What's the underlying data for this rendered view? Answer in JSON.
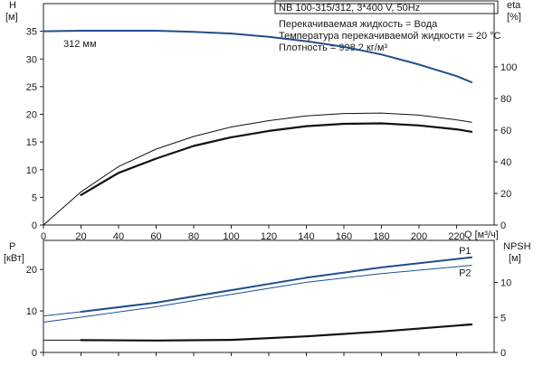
{
  "header": {
    "model": "NB 100-315/312, 3*400 V, 50Hz",
    "conditions": [
      "Перекачиваемая жидкость = Вода",
      "Температура перекачиваемой жидкости = 20 °C",
      "Плотность = 998.2 кг/м³"
    ]
  },
  "colors": {
    "blue": "#1f4e8c",
    "black": "#111111"
  },
  "chart_data": [
    {
      "type": "line",
      "title": "",
      "xlabel": "Q [м³/ч]",
      "ylabel": "H [м]",
      "ylabel_right": "eta [%]",
      "xlim": [
        0,
        240
      ],
      "ylim": [
        0,
        40
      ],
      "ylim_right": [
        0,
        140
      ],
      "x_ticks": [
        "0",
        "20",
        "40",
        "60",
        "80",
        "100",
        "120",
        "140",
        "160",
        "180",
        "200",
        "220"
      ],
      "y_ticks": [
        "0",
        "5",
        "10",
        "15",
        "20",
        "25",
        "30",
        "35"
      ],
      "y_ticks_right": [
        "0",
        "20",
        "40",
        "60",
        "80",
        "100"
      ],
      "annotation": "312 мм",
      "series": [
        {
          "axis": "left",
          "color": "blue",
          "x": [
            0,
            20,
            40,
            60,
            80,
            100,
            120,
            140,
            160,
            180,
            200,
            220,
            228
          ],
          "y": [
            35,
            35.1,
            35.1,
            35.1,
            34.9,
            34.6,
            34.0,
            33.2,
            32.2,
            30.8,
            29.0,
            26.9,
            25.8
          ]
        },
        {
          "axis": "right",
          "color": "black",
          "width": 1,
          "x": [
            0,
            20,
            40,
            60,
            80,
            100,
            120,
            140,
            160,
            180,
            200,
            220,
            228
          ],
          "y": [
            0,
            21,
            37,
            48,
            56,
            62,
            66,
            69,
            70.5,
            70.8,
            69.5,
            66.5,
            65
          ]
        },
        {
          "axis": "right",
          "color": "black",
          "width": 2.2,
          "x": [
            20,
            40,
            60,
            80,
            100,
            120,
            140,
            160,
            180,
            200,
            220,
            228
          ],
          "y": [
            19,
            33,
            42,
            50,
            55.5,
            59.5,
            62.5,
            64,
            64.3,
            63,
            60.5,
            59
          ]
        }
      ]
    },
    {
      "type": "line",
      "title": "",
      "xlabel": "",
      "ylabel": "P [кВт]",
      "ylabel_right": "NPSH [м]",
      "xlim": [
        0,
        240
      ],
      "ylim": [
        0,
        27
      ],
      "ylim_right": [
        0,
        16
      ],
      "y_ticks": [
        "0",
        "10",
        "20"
      ],
      "y_ticks_right": [
        "0",
        "5",
        "10"
      ],
      "series": [
        {
          "name": "P1",
          "axis": "left",
          "color": "blue",
          "width": 2,
          "x": [
            20,
            60,
            100,
            140,
            180,
            228
          ],
          "y": [
            9.8,
            12,
            15,
            18,
            20.5,
            22.9
          ]
        },
        {
          "name": "P2",
          "axis": "left",
          "color": "blue",
          "width": 1,
          "x": [
            0,
            20,
            60,
            100,
            140,
            180,
            228
          ],
          "y": [
            7.3,
            8.5,
            11,
            14,
            16.9,
            19,
            21
          ]
        },
        {
          "axis": "left",
          "color": "blue",
          "width": 1,
          "x": [
            0,
            20
          ],
          "y": [
            8.8,
            9.8
          ]
        },
        {
          "axis": "right",
          "color": "black",
          "width": 2.2,
          "x": [
            20,
            60,
            100,
            140,
            180,
            228
          ],
          "y": [
            1.75,
            1.7,
            1.8,
            2.3,
            3.0,
            4.0
          ]
        },
        {
          "axis": "right",
          "color": "black",
          "width": 1,
          "x": [
            0,
            20
          ],
          "y": [
            1.75,
            1.75
          ]
        }
      ]
    }
  ]
}
